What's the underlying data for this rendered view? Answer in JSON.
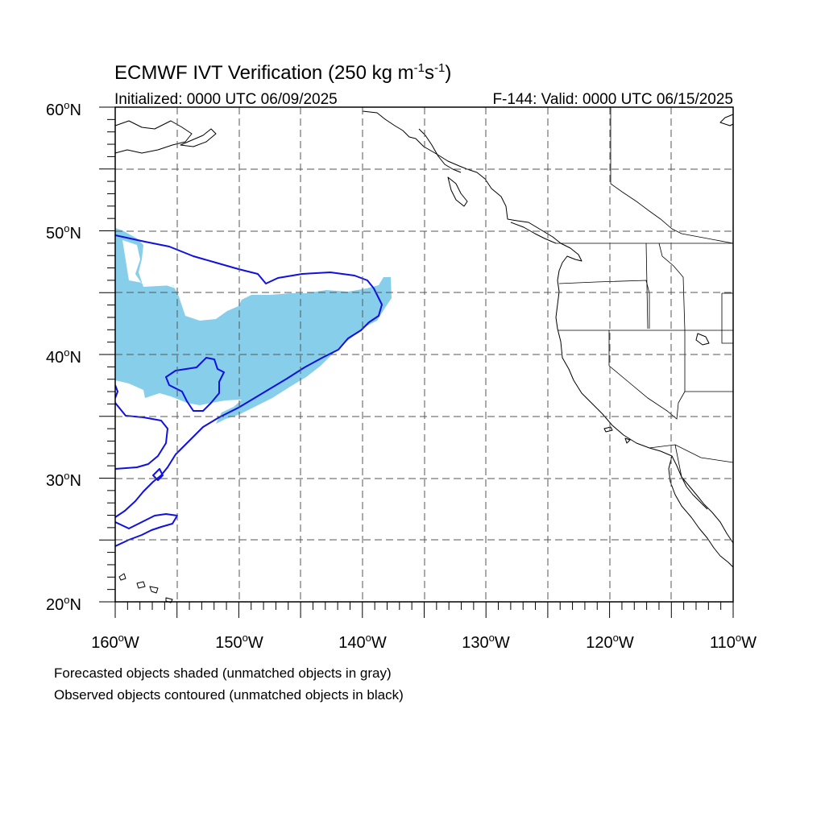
{
  "title": {
    "main": "ECMWF IVT Verification (250 kg m",
    "exp1": "-1",
    "mid": "s",
    "exp2": "-1",
    "end": ")"
  },
  "init_text": "Initialized: 0000 UTC 06/09/2025",
  "valid_text": "F-144: Valid: 0000 UTC 06/15/2025",
  "map": {
    "lon_range": [
      -160,
      -110
    ],
    "lat_range": [
      20,
      60
    ],
    "grid_interval_deg": 5,
    "lat_labels": [
      "20",
      "30",
      "40",
      "50",
      "60"
    ],
    "lat_suffix": "N",
    "lon_labels": [
      "160",
      "150",
      "140",
      "130",
      "120",
      "110"
    ],
    "lon_suffix": "W",
    "degree_mark": "o"
  },
  "legend": {
    "line1": "Forecasted objects shaded (unmatched objects in gray)",
    "line2": "Observed objects contoured (unmatched objects in black)"
  },
  "colors": {
    "forecast_matched": "#87ceeb",
    "observed_matched": "#1010e0",
    "coastline": "#000000"
  }
}
